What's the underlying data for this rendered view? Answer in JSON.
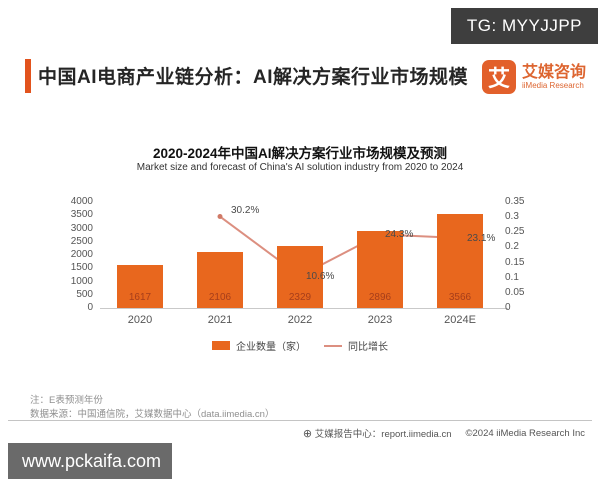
{
  "watermark": {
    "tg_label": "TG: MYYJJPP",
    "site_banner": "www.pckaifa.com"
  },
  "header": {
    "title": "中国AI电商产业链分析：AI解决方案行业市场规模",
    "logo": {
      "symbol": "艾",
      "name_cn": "艾媒咨询",
      "name_en": "iiMedia Research"
    }
  },
  "colors": {
    "brand_orange": "#e2602b",
    "accent_bar": "#e2531d",
    "bar_fill": "#e8671e",
    "line_stroke": "#dc8f80",
    "tg_box_bg": "#3e3e3e",
    "banner_bg": "#6a6a6a"
  },
  "chart_data": {
    "type": "bar",
    "title": "2020-2024年中国AI解决方案行业市场规模及预测",
    "subtitle": "Market size and forecast of China's AI solution industry from 2020 to 2024",
    "categories": [
      "2020",
      "2021",
      "2022",
      "2023",
      "2024E"
    ],
    "series": [
      {
        "name": "企业数量（家）",
        "type": "bar",
        "axis": "left",
        "color": "#e8671e",
        "values": [
          1617,
          2106,
          2329,
          2896,
          3566
        ]
      },
      {
        "name": "同比增长",
        "type": "line",
        "axis": "right",
        "color": "#dc8f80",
        "values": [
          null,
          0.302,
          0.106,
          0.243,
          0.231
        ],
        "labels": [
          "",
          "30.2%",
          "10.6%",
          "24.3%",
          "23.1%"
        ]
      }
    ],
    "left_axis": {
      "min": 0,
      "max": 4000,
      "step": 500,
      "ticks": [
        "4000",
        "3500",
        "3000",
        "2500",
        "2000",
        "1500",
        "1000",
        "500",
        "0"
      ]
    },
    "right_axis": {
      "min": 0,
      "max": 0.35,
      "step": 0.05,
      "ticks": [
        "0.35",
        "0.3",
        "0.25",
        "0.2",
        "0.15",
        "0.1",
        "0.05",
        "0"
      ]
    },
    "grid": false,
    "legend_position": "bottom"
  },
  "notes": {
    "line1": "注：E表预测年份",
    "line2": "数据来源：中国通信院，艾媒数据中心（data.iimedia.cn）"
  },
  "footer": {
    "globe_icon": "⊕",
    "report_center": "艾媒报告中心：report.iimedia.cn",
    "copyright": "©2024  iiMedia Research  Inc"
  }
}
